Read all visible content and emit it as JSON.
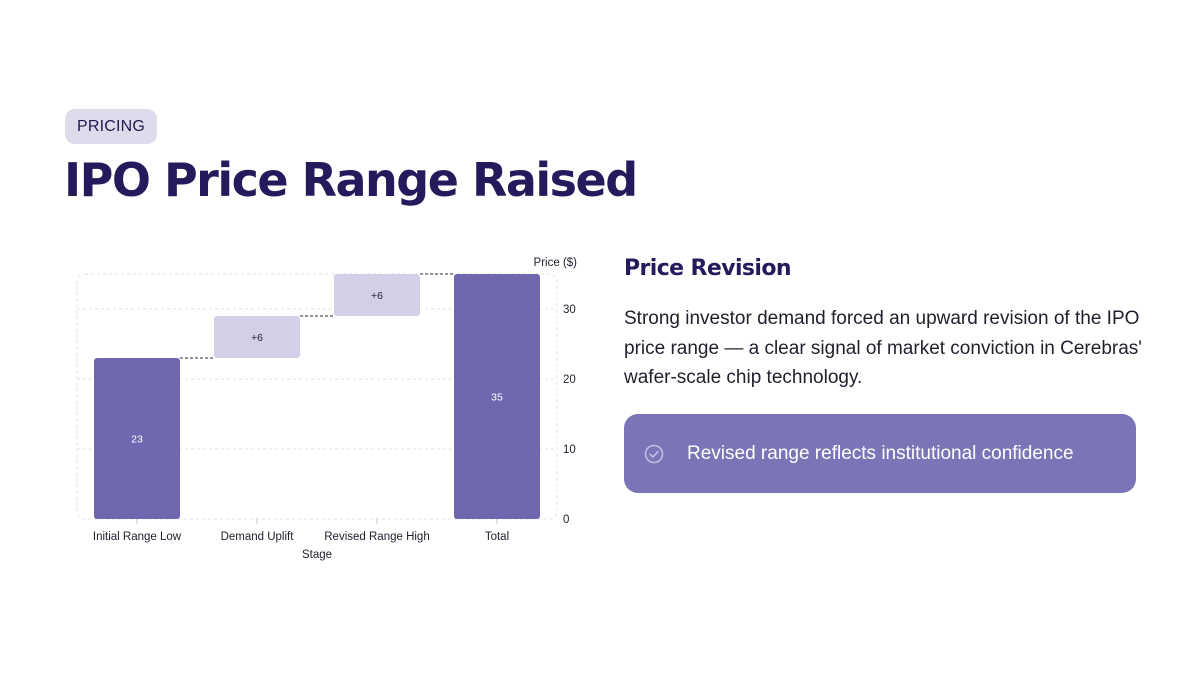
{
  "tag": "PRICING",
  "title": "IPO Price Range Raised",
  "side": {
    "heading": "Price Revision",
    "body": "Strong investor demand forced an upward revision of the IPO price range — a clear signal of market conviction in Cerebras' wafer-scale chip technology.",
    "callout": "Revised range reflects institutional confidence",
    "callout_icon": "check-circle-icon"
  },
  "colors": {
    "total_bar": "#6f68b0",
    "delta_bar": "#d2d0e6",
    "title": "#241a5c",
    "callout": "#7b74b7"
  },
  "chart_data": {
    "type": "bar",
    "subtype": "waterfall",
    "categories": [
      "Initial Range Low",
      "Demand Uplift",
      "Revised Range High",
      "Total"
    ],
    "values": [
      23,
      6,
      6,
      35
    ],
    "kinds": [
      "total",
      "delta",
      "delta",
      "total"
    ],
    "data_labels": [
      "23",
      "+6",
      "+6",
      "35"
    ],
    "xlabel": "Stage",
    "ylabel": "Price ($)",
    "ylim": [
      0,
      35
    ],
    "yticks": [
      0,
      10,
      20,
      30
    ],
    "grid": true,
    "yaxis_side": "right"
  }
}
